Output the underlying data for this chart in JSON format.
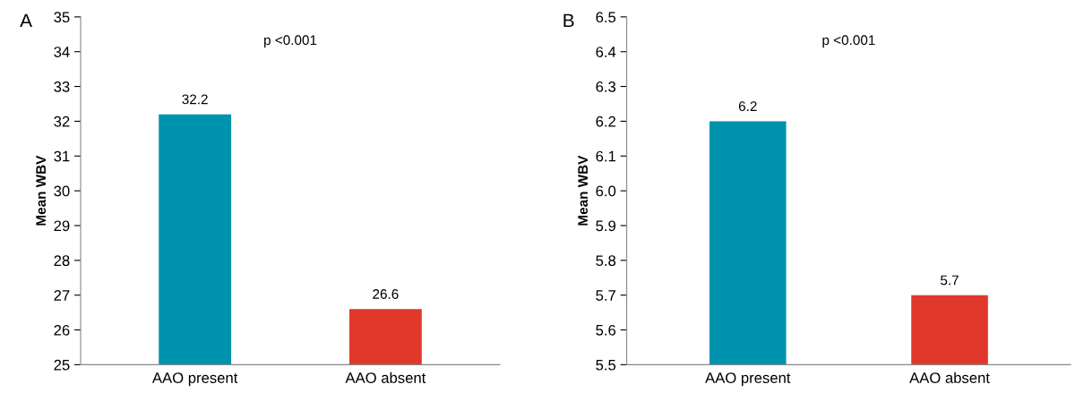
{
  "chart_data": [
    {
      "type": "bar",
      "title": "A",
      "ylabel": "Mean WBV",
      "categories": [
        "AAO present",
        "AAO absent"
      ],
      "values": [
        32.2,
        26.6
      ],
      "colors": [
        "#0093ae",
        "#e0392b"
      ],
      "ylim": [
        25,
        35
      ],
      "yticks": [
        25,
        26,
        27,
        28,
        29,
        30,
        31,
        32,
        33,
        34,
        35
      ],
      "data_labels": true,
      "annotations": [
        "p <0.001"
      ],
      "grid": false,
      "legend": false
    },
    {
      "type": "bar",
      "title": "B",
      "ylabel": "Mean WBV",
      "categories": [
        "AAO present",
        "AAO absent"
      ],
      "values": [
        6.2,
        5.7
      ],
      "colors": [
        "#0093ae",
        "#e0392b"
      ],
      "ylim": [
        5.5,
        6.5
      ],
      "yticks": [
        {
          "value": 5.5,
          "label": "5.5"
        },
        {
          "value": 5.6,
          "label": "5.6"
        },
        {
          "value": 5.7,
          "label": "5.7"
        },
        {
          "value": 5.8,
          "label": "5.8"
        },
        {
          "value": 5.9,
          "label": "5.9"
        },
        {
          "value": 6.0,
          "label": "6.0"
        },
        {
          "value": 6.1,
          "label": "6.1"
        },
        {
          "value": 6.2,
          "label": "6.2"
        },
        {
          "value": 6.3,
          "label": "6.3"
        },
        {
          "value": 6.4,
          "label": "6.4"
        },
        {
          "value": 6.5,
          "label": "6.5"
        }
      ],
      "data_labels": true,
      "annotations": [
        "p <0.001"
      ],
      "grid": false,
      "legend": false
    }
  ]
}
